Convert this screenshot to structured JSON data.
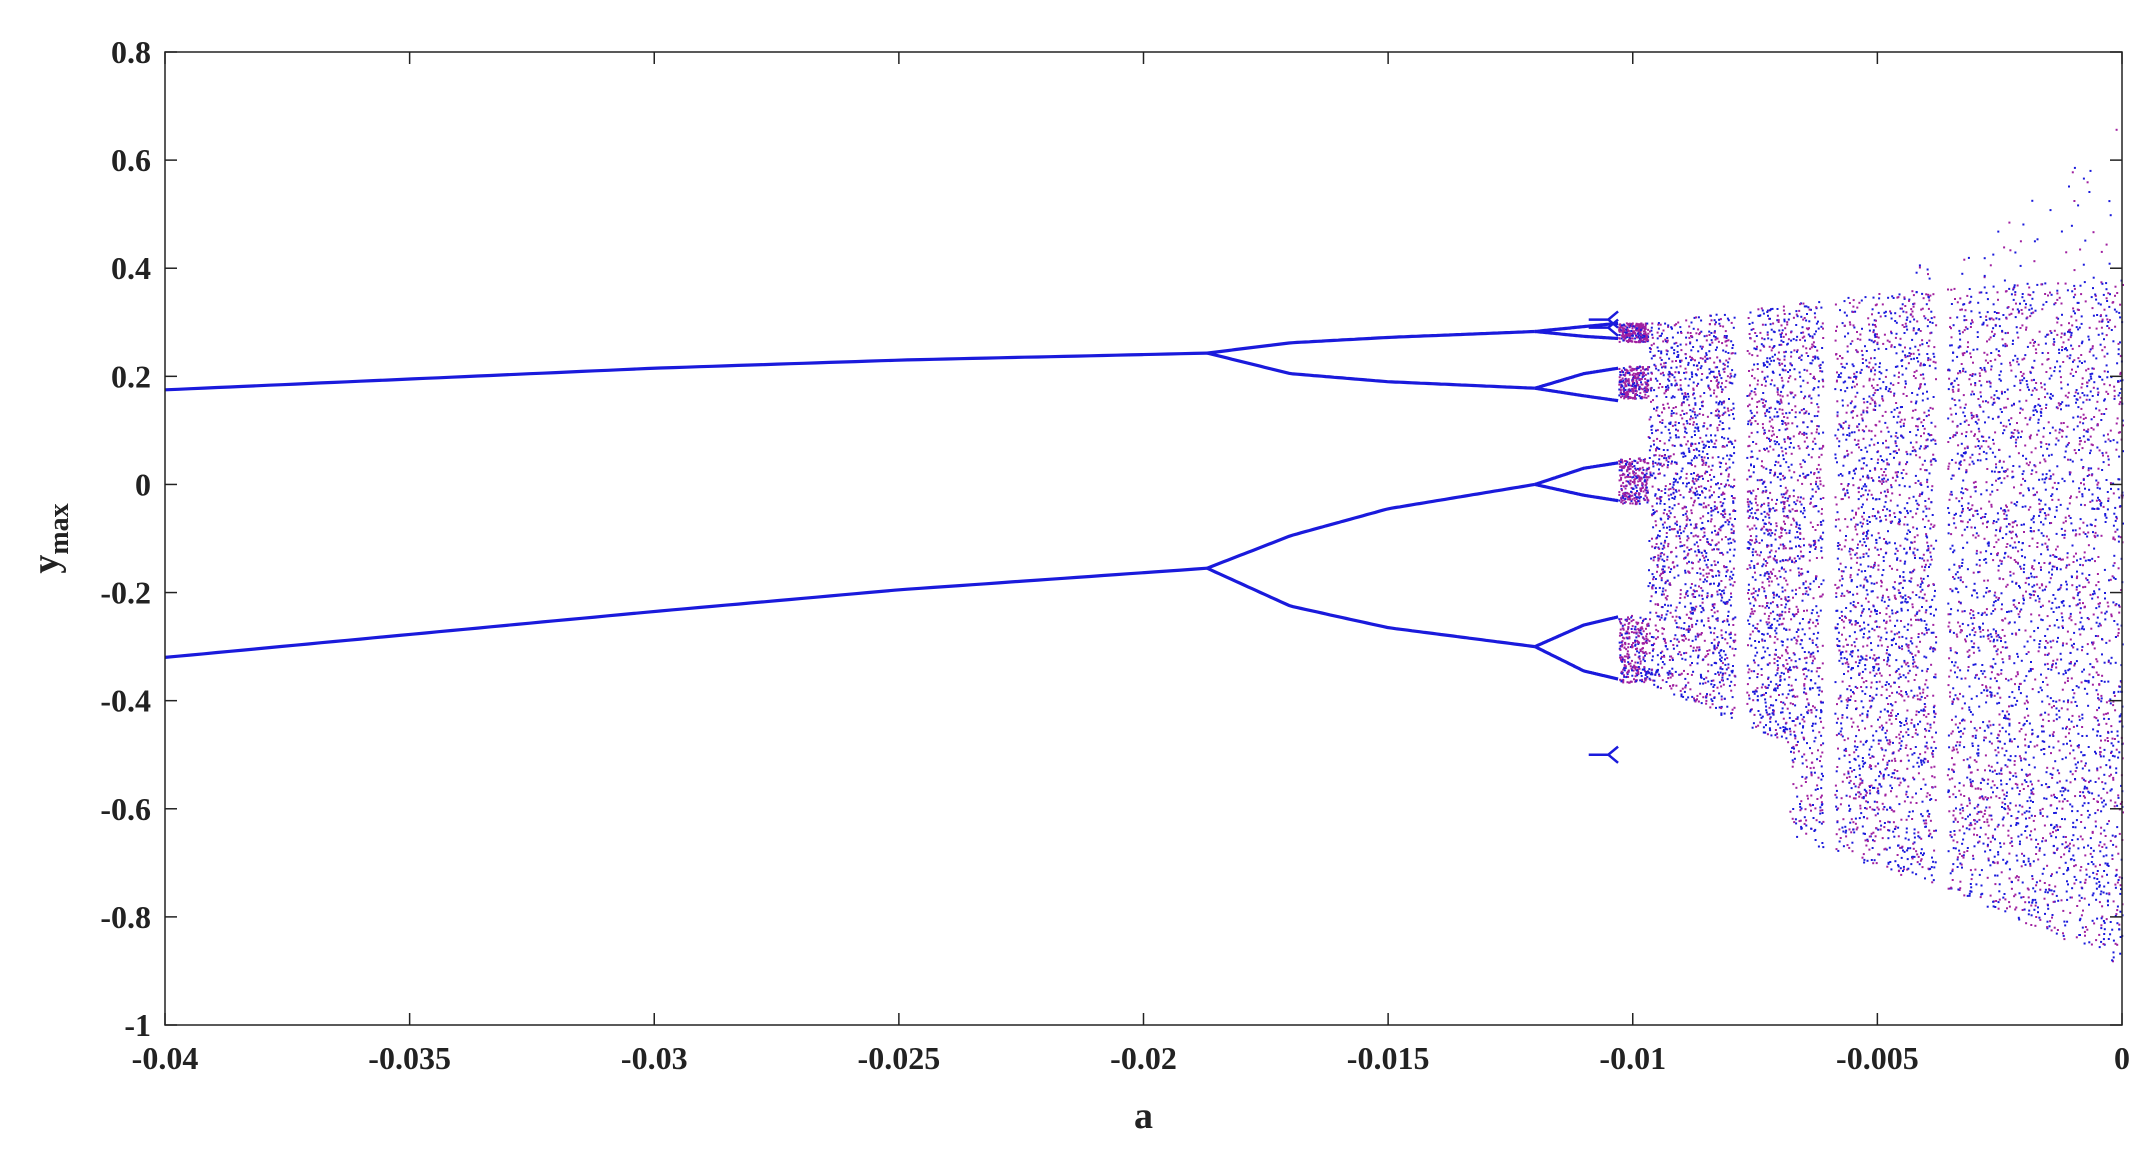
{
  "chart_data": {
    "type": "scatter",
    "title": "",
    "xlabel": "a",
    "ylabel": {
      "base": "y",
      "sub": "max"
    },
    "xlim": [
      -0.04,
      0
    ],
    "ylim": [
      -1,
      0.8
    ],
    "xticks": [
      -0.04,
      -0.035,
      -0.03,
      -0.025,
      -0.02,
      -0.015,
      -0.01,
      -0.005,
      0
    ],
    "xtick_labels": [
      "-0.04",
      "-0.035",
      "-0.03",
      "-0.025",
      "-0.02",
      "-0.015",
      "-0.01",
      "-0.005",
      "0"
    ],
    "yticks": [
      0.8,
      0.6,
      0.4,
      0.2,
      0,
      -0.2,
      -0.4,
      -0.6,
      -0.8,
      -1
    ],
    "ytick_labels": [
      "0.8",
      "0.6",
      "0.4",
      "0.2",
      "0",
      "-0.2",
      "-0.4",
      "-0.6",
      "-0.8",
      "-1"
    ],
    "grid": false,
    "colors": {
      "series_1": "#1a1adc",
      "series_2": "#a020a0",
      "axis": "#222222"
    },
    "series": [
      {
        "color": "#1a1adc",
        "branches": [
          {
            "x": [
              -0.04,
              -0.03,
              -0.025,
              -0.0187
            ],
            "y": [
              0.175,
              0.215,
              0.23,
              0.243
            ]
          },
          {
            "x": [
              -0.04,
              -0.03,
              -0.025,
              -0.0187
            ],
            "y": [
              -0.32,
              -0.235,
              -0.195,
              -0.155
            ]
          },
          {
            "x": [
              -0.0187,
              -0.017,
              -0.015,
              -0.012
            ],
            "y": [
              0.243,
              0.262,
              0.272,
              0.283
            ]
          },
          {
            "x": [
              -0.0187,
              -0.017,
              -0.015,
              -0.012
            ],
            "y": [
              0.243,
              0.205,
              0.19,
              0.178
            ]
          },
          {
            "x": [
              -0.0187,
              -0.017,
              -0.015,
              -0.012
            ],
            "y": [
              -0.155,
              -0.095,
              -0.045,
              0.0
            ]
          },
          {
            "x": [
              -0.0187,
              -0.017,
              -0.015,
              -0.012
            ],
            "y": [
              -0.155,
              -0.225,
              -0.265,
              -0.3
            ]
          },
          {
            "x": [
              -0.012,
              -0.011,
              -0.0103
            ],
            "y": [
              0.283,
              0.292,
              0.298
            ]
          },
          {
            "x": [
              -0.012,
              -0.011,
              -0.0103
            ],
            "y": [
              0.283,
              0.274,
              0.27
            ]
          },
          {
            "x": [
              -0.012,
              -0.011,
              -0.0103
            ],
            "y": [
              0.178,
              0.205,
              0.215
            ]
          },
          {
            "x": [
              -0.012,
              -0.011,
              -0.0103
            ],
            "y": [
              0.178,
              0.164,
              0.155
            ]
          },
          {
            "x": [
              -0.012,
              -0.011,
              -0.0103
            ],
            "y": [
              0.0,
              0.03,
              0.04
            ]
          },
          {
            "x": [
              -0.012,
              -0.011,
              -0.0103
            ],
            "y": [
              0.0,
              -0.02,
              -0.03
            ]
          },
          {
            "x": [
              -0.012,
              -0.011,
              -0.0103
            ],
            "y": [
              -0.3,
              -0.26,
              -0.245
            ]
          },
          {
            "x": [
              -0.012,
              -0.011,
              -0.0103
            ],
            "y": [
              -0.3,
              -0.345,
              -0.36
            ]
          }
        ]
      },
      {
        "color": "#a020a0",
        "bands": [
          {
            "x": [
              -0.0103,
              -0.0097
            ],
            "y": [
              0.265,
              0.3
            ]
          },
          {
            "x": [
              -0.0103,
              -0.0097
            ],
            "y": [
              0.16,
              0.22
            ]
          },
          {
            "x": [
              -0.0103,
              -0.0097
            ],
            "y": [
              -0.035,
              0.05
            ]
          },
          {
            "x": [
              -0.0103,
              -0.0097
            ],
            "y": [
              -0.365,
              -0.24
            ]
          }
        ]
      }
    ],
    "windows": [
      {
        "x": -0.0105,
        "y": [
          0.305,
          0.29,
          -0.5
        ]
      },
      {
        "x": -0.0078,
        "y": null
      },
      {
        "x": -0.006,
        "y": null
      },
      {
        "x": -0.0037,
        "y": null
      }
    ],
    "chaotic_region": {
      "x_start": -0.0097,
      "x_end": 0,
      "upper_envelope": [
        [
          -0.0097,
          0.3
        ],
        [
          -0.0068,
          0.335
        ],
        [
          -0.003,
          0.37
        ],
        [
          0,
          0.38
        ]
      ],
      "outer_upper_envelope": [
        [
          -0.006,
          0.33
        ],
        [
          -0.003,
          0.46
        ],
        [
          0,
          0.67
        ]
      ],
      "lower_envelope": [
        [
          -0.0097,
          -0.37
        ],
        [
          -0.0068,
          -0.48
        ],
        [
          -0.0068,
          -0.65
        ],
        [
          -0.003,
          -0.77
        ],
        [
          0,
          -0.89
        ]
      ]
    }
  }
}
